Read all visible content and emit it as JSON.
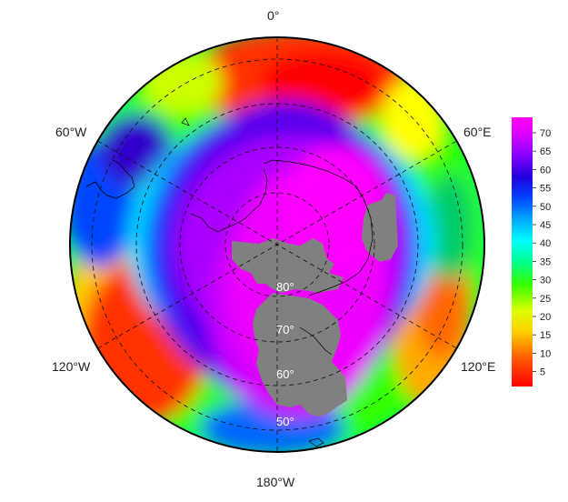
{
  "map": {
    "projection": "polar-stereographic-south",
    "longitude_labels": {
      "top": "0°",
      "upper_left": "60°W",
      "upper_right": "60°E",
      "lower_left": "120°W",
      "lower_right": "120°E",
      "bottom": "180°W"
    },
    "latitude_labels": [
      "80°",
      "70°",
      "60°",
      "50°"
    ],
    "graticule": "dashed",
    "land_color": "#808080"
  },
  "colorbar": {
    "ticks": [
      "70",
      "65",
      "60",
      "55",
      "50",
      "45",
      "40",
      "35",
      "30",
      "25",
      "20",
      "15",
      "10",
      "5"
    ],
    "range": [
      0,
      75
    ],
    "colors": [
      "#ff0000",
      "#ff6600",
      "#ffcc00",
      "#ffff00",
      "#99ff00",
      "#00ff00",
      "#00ff99",
      "#00ffff",
      "#0099ff",
      "#0033ff",
      "#3300cc",
      "#8800ff",
      "#cc00ff",
      "#ff00ff"
    ]
  }
}
